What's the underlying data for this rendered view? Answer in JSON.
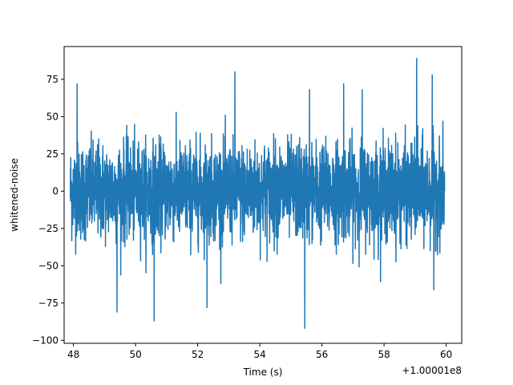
{
  "chart_data": {
    "type": "line",
    "title": "",
    "xlabel": "Time (s)",
    "ylabel": "whitened-noise",
    "x_offset_label": "+1.00001e8",
    "xlim": [
      47.7,
      60.5
    ],
    "ylim": [
      -102,
      97
    ],
    "x_ticks": [
      48,
      50,
      52,
      54,
      56,
      58,
      60
    ],
    "x_tick_labels": [
      "48",
      "50",
      "52",
      "54",
      "56",
      "58",
      "60"
    ],
    "y_ticks": [
      -100,
      -75,
      -50,
      -25,
      0,
      25,
      50,
      75
    ],
    "y_tick_labels": [
      "−100",
      "−75",
      "−50",
      "−25",
      "0",
      "25",
      "50",
      "75"
    ],
    "grid": false,
    "series": [
      {
        "color": "#1f77b4",
        "x_start": 47.9,
        "x_end": 59.95,
        "envelope_typical": [
          -42,
          42
        ],
        "extremes": [
          {
            "x": 48.12,
            "y": 72
          },
          {
            "x": 50.6,
            "y": -87
          },
          {
            "x": 53.2,
            "y": 80
          },
          {
            "x": 55.45,
            "y": -92
          },
          {
            "x": 59.05,
            "y": 89
          },
          {
            "x": 59.55,
            "y": 78
          },
          {
            "x": 49.4,
            "y": -81
          },
          {
            "x": 52.3,
            "y": -78
          },
          {
            "x": 55.6,
            "y": 68
          },
          {
            "x": 56.7,
            "y": 72
          },
          {
            "x": 57.3,
            "y": 68
          },
          {
            "x": 59.6,
            "y": -66
          }
        ]
      }
    ]
  }
}
